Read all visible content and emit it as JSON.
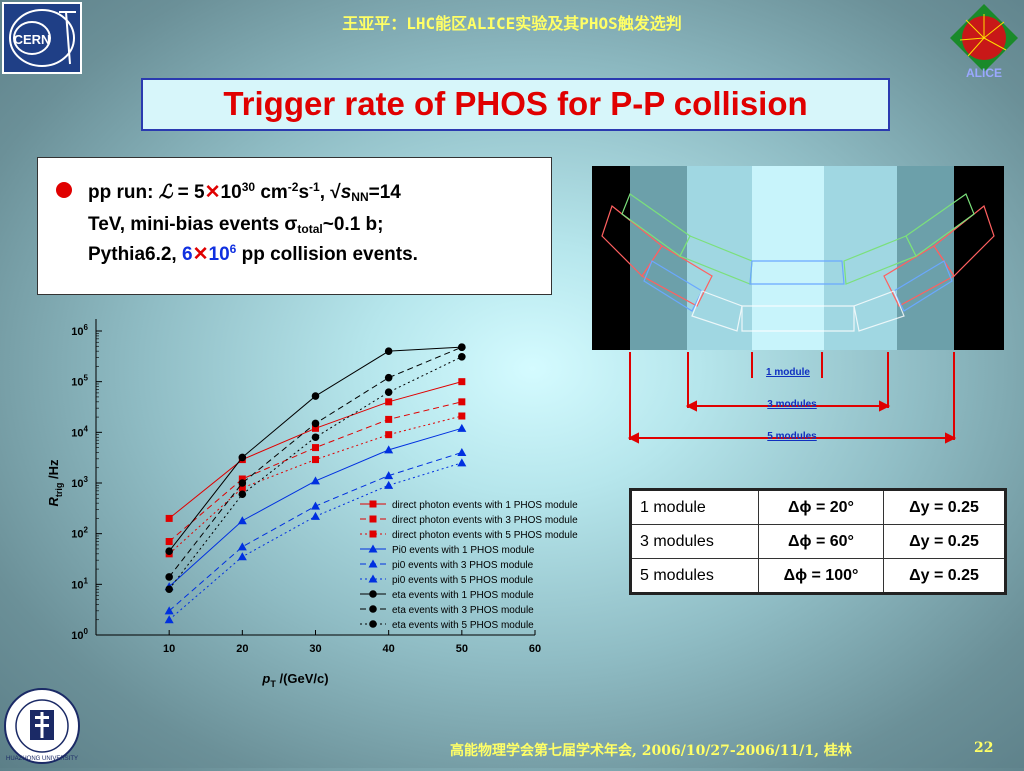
{
  "header": {
    "title": "王亚平：LHC能区ALICE实验及其PHOS触发选判",
    "cern_logo_text": "CERN",
    "alice_logo_text": "ALICE"
  },
  "slide_title": "Trigger rate of PHOS for P-P collision",
  "info": {
    "l1_pre": "pp run: ",
    "l1_L": "ℒ",
    "l1_eq": " = 5",
    "l1_times": "✕",
    "l1_ten": "10",
    "l1_exp30": "30",
    "l1_cm": " cm",
    "l1_exp_m2": "-2",
    "l1_s": "s",
    "l1_exp_m1": "-1",
    "l1_comma": ", √",
    "l1_sNN_s": "s",
    "l1_sNN_sub": "NN",
    "l1_eq14": "=14",
    "l2_pre": "TeV, mini-bias events σ",
    "l2_sub": "total",
    "l2_post": "~0.1 b;",
    "l3_pre": "Pythia6.2, ",
    "l3_six": "6",
    "l3_times": "✕",
    "l3_ten": "10",
    "l3_exp": "6",
    "l3_post": " pp collision events."
  },
  "modules_figure": {
    "labels": [
      "1 module",
      "3 modules",
      "5 modules"
    ],
    "colors": {
      "arrow": "#e00000",
      "label": "#1030c0"
    }
  },
  "acceptance_table": {
    "rows": [
      {
        "name": "1 module",
        "dphi": "Δϕ = 20°",
        "dy": "Δy = 0.25"
      },
      {
        "name": "3 modules",
        "dphi": "Δϕ = 60°",
        "dy": "Δy = 0.25"
      },
      {
        "name": "5 modules",
        "dphi": "Δϕ = 100°",
        "dy": "Δy = 0.25"
      }
    ]
  },
  "chart_data": {
    "type": "line",
    "xlabel": "p_T /(GeV/c)",
    "ylabel": "R_trig /Hz",
    "xlim": [
      0,
      60
    ],
    "ylim_log10": [
      0,
      6
    ],
    "y_scale": "log",
    "x_ticks": [
      "10",
      "20",
      "30",
      "40",
      "50",
      "60"
    ],
    "y_ticks": [
      {
        "base": "10",
        "exp": "0"
      },
      {
        "base": "10",
        "exp": "1"
      },
      {
        "base": "10",
        "exp": "2"
      },
      {
        "base": "10",
        "exp": "3"
      },
      {
        "base": "10",
        "exp": "4"
      },
      {
        "base": "10",
        "exp": "5"
      },
      {
        "base": "10",
        "exp": "6"
      }
    ],
    "x": [
      10,
      20,
      30,
      40,
      50
    ],
    "legend_position": "lower-right",
    "series": [
      {
        "name": "direct photon events with 1 PHOS module",
        "color": "#e00000",
        "marker": "square",
        "dash": "solid",
        "values": [
          200,
          2900,
          12000,
          40000,
          100000
        ]
      },
      {
        "name": "direct photon events with 3 PHOS module",
        "color": "#e00000",
        "marker": "square",
        "dash": "dashed",
        "values": [
          70,
          1200,
          5000,
          18000,
          40000
        ]
      },
      {
        "name": "direct photon events with 5 PHOS module",
        "color": "#e00000",
        "marker": "square",
        "dash": "dotted",
        "values": [
          40,
          800,
          2900,
          9000,
          21000
        ]
      },
      {
        "name": "Pi0 events with 1 PHOS module",
        "color": "#0030e0",
        "marker": "triangle",
        "dash": "solid",
        "values": [
          9,
          180,
          1100,
          4500,
          12000
        ]
      },
      {
        "name": "pi0 events with 3 PHOS module",
        "color": "#0030e0",
        "marker": "triangle",
        "dash": "dashed",
        "values": [
          3,
          55,
          350,
          1400,
          4000
        ]
      },
      {
        "name": "pi0 events with 5 PHOS module",
        "color": "#0030e0",
        "marker": "triangle",
        "dash": "dotted",
        "values": [
          2,
          35,
          220,
          900,
          2500
        ]
      },
      {
        "name": "eta events with 1 PHOS module",
        "color": "#000000",
        "marker": "circle",
        "dash": "solid",
        "values": [
          45,
          3200,
          52000,
          400000,
          480000
        ]
      },
      {
        "name": "eta events with 3 PHOS module",
        "color": "#000000",
        "marker": "circle",
        "dash": "dashed",
        "values": [
          14,
          1000,
          15000,
          120000,
          480000
        ]
      },
      {
        "name": "eta events with 5 PHOS module",
        "color": "#000000",
        "marker": "circle",
        "dash": "dotted",
        "values": [
          8,
          600,
          8000,
          62000,
          310000
        ]
      }
    ]
  },
  "footer": {
    "text": "高能物理学会第七届学术年会, 2006/10/27-2006/11/1, 桂林",
    "page": "22"
  },
  "university_logo_text": "HUAZHONG UNIVERSITY"
}
